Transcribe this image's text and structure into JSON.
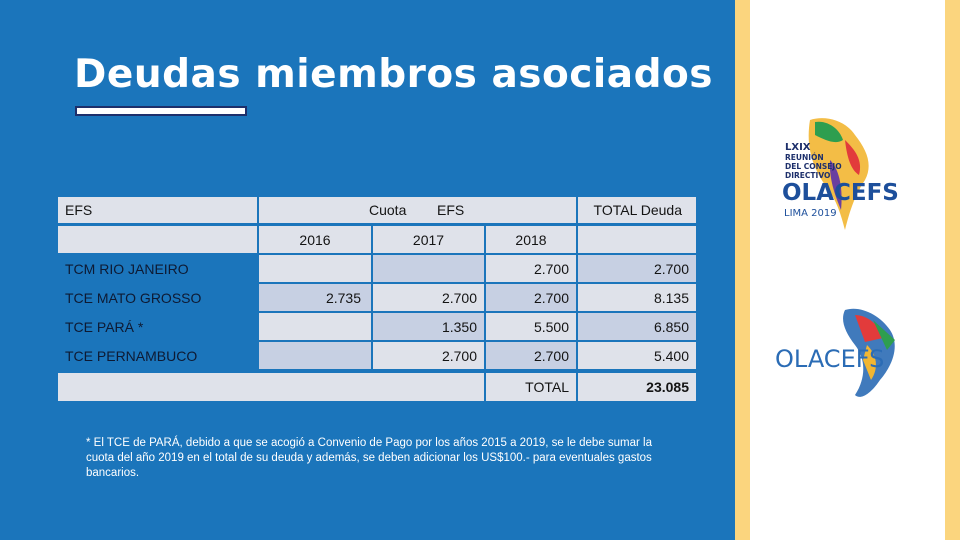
{
  "title": "Deudas miembros asociados",
  "table": {
    "header": {
      "efs": "EFS",
      "cuota": "Cuota",
      "cuota_efs": "EFS",
      "total": "TOTAL Deuda"
    },
    "years": [
      "2016",
      "2017",
      "2018"
    ],
    "rows": [
      [
        "TCM RIO JANEIRO",
        null,
        null,
        "2.700",
        "2.700"
      ],
      [
        "TCE MATO GROSSO",
        "2.735",
        "2.700",
        "2.700",
        "8.135"
      ],
      [
        "TCE PARÁ  *",
        null,
        "1.350",
        "5.500",
        "6.850"
      ],
      [
        "TCE PERNAMBUCO",
        null,
        "2.700",
        "2.700",
        "5.400"
      ]
    ],
    "total": {
      "label": "TOTAL",
      "value": "23.085"
    }
  },
  "footnote": "* El TCE de PARÁ,  debido a que se acogió a Convenio de Pago por los años 2015 a 2019, se le debe sumar la cuota del año 2019 en el total de su deuda y además, se deben adicionar los US$100.- para eventuales gastos bancarios.",
  "logos": {
    "top": {
      "line1": "LXIX",
      "line2": "REUNIÓN",
      "line3": "DEL CONSEJO",
      "line4": "DIRECTIVO",
      "name": "OLACEFS",
      "place": "LIMA 2019"
    },
    "bottom": {
      "name": "OLACEFS"
    }
  }
}
